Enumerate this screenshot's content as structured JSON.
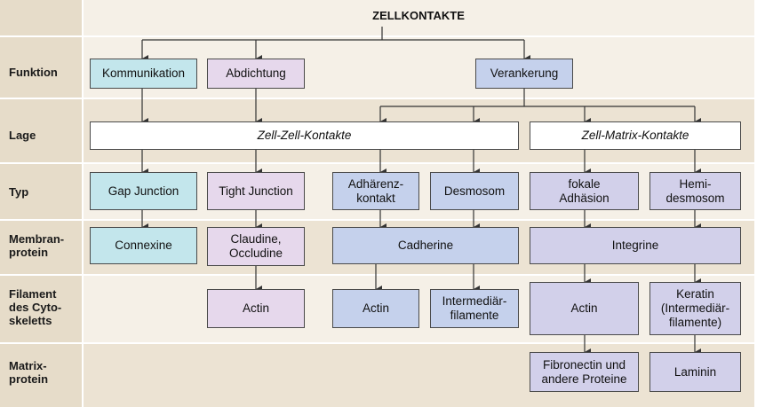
{
  "diagram": {
    "title": "ZELLKONTAKTE",
    "rows": {
      "funktion": "Funktion",
      "lage": "Lage",
      "typ": "Typ",
      "membranprotein": "Membran-\nprotein",
      "filament": "Filament\ndes Cyto-\nskeletts",
      "matrixprotein": "Matrix-\nprotein"
    },
    "funktion": {
      "kommunikation": "Kommunikation",
      "abdichtung": "Abdichtung",
      "verankerung": "Verankerung"
    },
    "lage": {
      "zell_zell": "Zell-Zell-Kontakte",
      "zell_matrix": "Zell-Matrix-Kontakte"
    },
    "typ": {
      "gap_junction": "Gap Junction",
      "tight_junction": "Tight Junction",
      "adhaerenzkontakt": "Adhärenz-\nkontakt",
      "desmosom": "Desmosom",
      "fokale_adhaesion": "fokale\nAdhäsion",
      "hemidesmosom": "Hemi-\ndesmosom"
    },
    "membranprotein": {
      "connexine": "Connexine",
      "claudine": "Claudine,\nOccludine",
      "cadherine": "Cadherine",
      "integrine": "Integrine"
    },
    "filament": {
      "actin_tight": "Actin",
      "actin_adhaerenz": "Actin",
      "intermediaerfilamente": "Intermediär-\nfilamente",
      "actin_fokal": "Actin",
      "keratin": "Keratin\n(Intermediär-\nfilamente)"
    },
    "matrixprotein": {
      "fibronectin": "Fibronectin und\nandere Proteine",
      "laminin": "Laminin"
    },
    "colors": {
      "kommunikation": "#c3e6ec",
      "abdichtung": "#e6d8ec",
      "verankerung_zell_zell": "#c5d1ec",
      "verankerung_zell_matrix": "#d2d0ea",
      "row_band_light": "#f5f0e7",
      "row_band_dark": "#ece3d3"
    }
  }
}
